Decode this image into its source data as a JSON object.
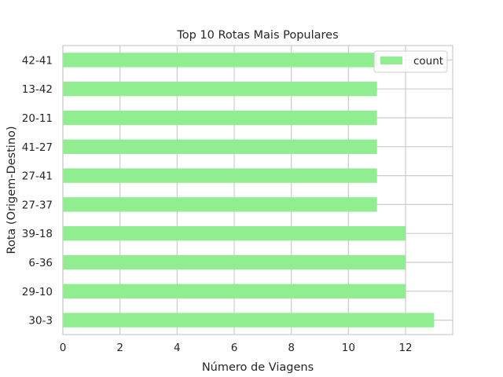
{
  "chart_data": {
    "type": "bar",
    "orientation": "horizontal",
    "title": "Top 10 Rotas Mais Populares",
    "xlabel": "Número de Viagens",
    "ylabel": "Rota (Origem-Destino)",
    "categories": [
      "30-3",
      "29-10",
      "6-36",
      "39-18",
      "27-37",
      "27-41",
      "41-27",
      "20-11",
      "13-42",
      "42-41"
    ],
    "series": [
      {
        "name": "count",
        "values": [
          13,
          12,
          12,
          12,
          11,
          11,
          11,
          11,
          11,
          11
        ],
        "color": "#90ee90"
      }
    ],
    "xlim": [
      0,
      13.65
    ],
    "xticks": [
      0,
      2,
      4,
      6,
      8,
      10,
      12
    ],
    "grid": true,
    "legend": "top-right"
  },
  "colors": {
    "grid": "#cccccc",
    "spine": "#cccccc",
    "text": "#262626",
    "background": "#ffffff"
  }
}
